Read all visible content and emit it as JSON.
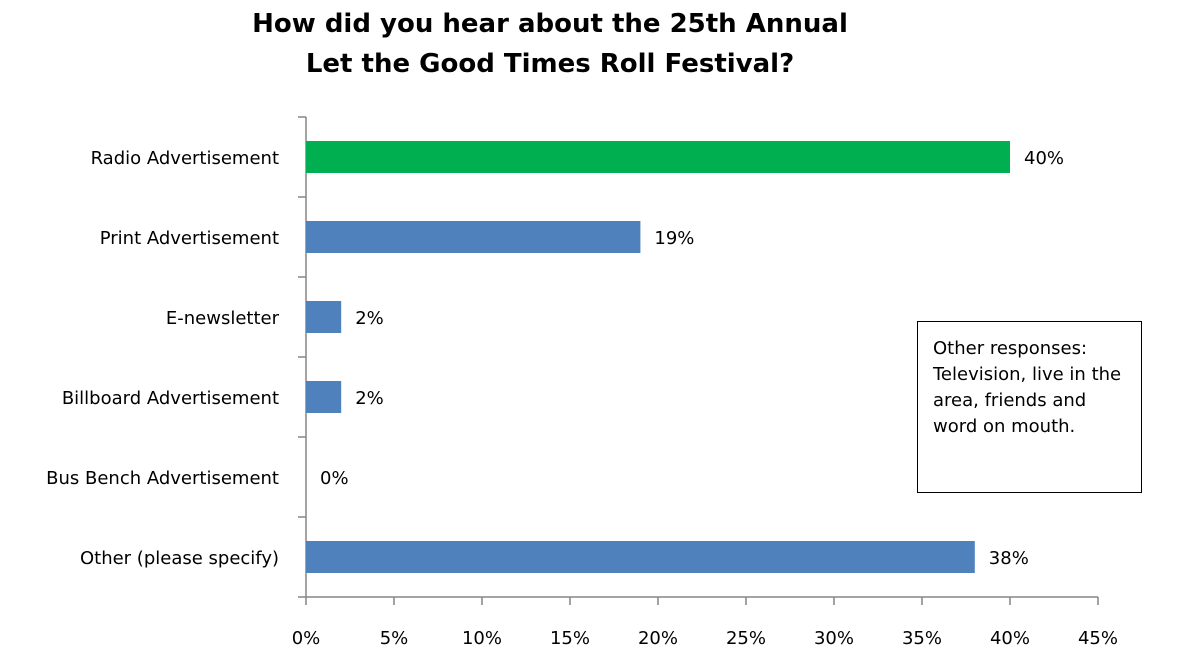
{
  "chart_data": {
    "type": "bar",
    "orientation": "horizontal",
    "title_lines": [
      "How did you hear about the 25th Annual",
      "Let the Good Times Roll Festival?"
    ],
    "categories": [
      "Radio Advertisement",
      "Print Advertisement",
      "E-newsletter",
      "Billboard Advertisement",
      "Bus Bench Advertisement",
      "Other (please specify)"
    ],
    "values": [
      40,
      19,
      2,
      2,
      0,
      38
    ],
    "value_labels": [
      "40%",
      "19%",
      "2%",
      "2%",
      "0%",
      "38%"
    ],
    "bar_colors": [
      "#00b050",
      "#4f81bd",
      "#4f81bd",
      "#4f81bd",
      "#4f81bd",
      "#4f81bd"
    ],
    "xlim": [
      0,
      45
    ],
    "x_ticks": [
      0,
      5,
      10,
      15,
      20,
      25,
      30,
      35,
      40,
      45
    ],
    "x_tick_labels": [
      "0%",
      "5%",
      "10%",
      "15%",
      "20%",
      "25%",
      "30%",
      "35%",
      "40%",
      "45%"
    ],
    "grid": false,
    "annotation": "Other responses: Television, live in the area, friends and word on mouth."
  }
}
